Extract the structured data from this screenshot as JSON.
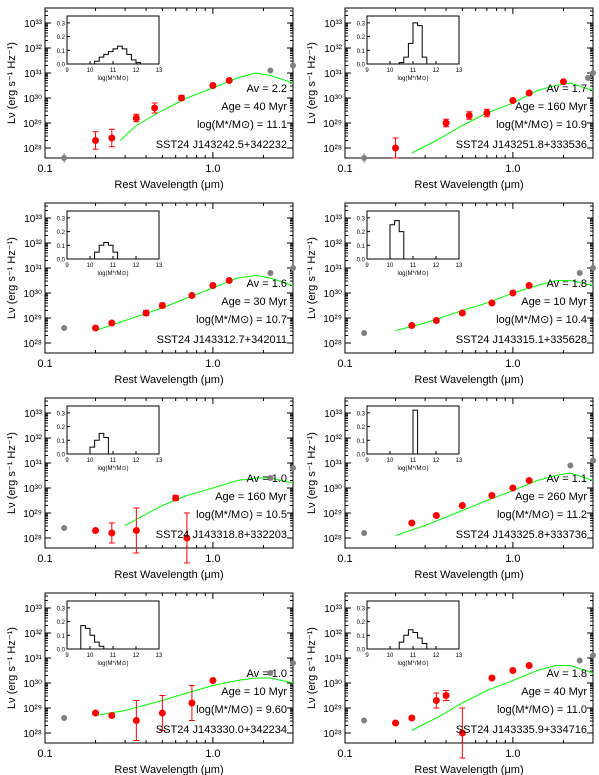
{
  "chart_data": {
    "type": "scatter",
    "xlabel": "Rest Wavelength (μm)",
    "ylabel": "Lν (erg s⁻¹ Hz⁻¹)",
    "x_scale": "log",
    "y_scale": "log",
    "xlim": [
      0.1,
      3.0
    ],
    "ylim_log10": [
      27.6,
      33.6
    ],
    "x_tick_labels": [
      "0.1",
      "1.0"
    ],
    "y_tick_labels": [
      "10²⁸",
      "10²⁹",
      "10³⁰",
      "10³¹",
      "10³²",
      "10³³"
    ],
    "colors": {
      "photometry": "#ff0000",
      "irac": "#808080",
      "model": "#00ff00",
      "frame": "#000000"
    },
    "inset": {
      "xlabel": "log(M*/M⊙)",
      "x_ticks": [
        "9",
        "10",
        "11",
        "12",
        "13"
      ],
      "y_ticks": [
        "0.0",
        "0.1",
        "0.2",
        "0.3"
      ],
      "xlim": [
        9,
        13
      ],
      "ylim": [
        0,
        0.35
      ]
    },
    "panels": [
      {
        "name": "SST24 J143242.5+342232",
        "av_text": "Av = 2.2",
        "age_text": "Age = 40 Myr",
        "mass_text": "log(M*/M⊙) = 11.1",
        "points_red": [
          [
            0.2,
            28.3,
            0.35
          ],
          [
            0.25,
            28.4,
            0.35
          ],
          [
            0.35,
            29.2,
            0.15
          ],
          [
            0.45,
            29.6,
            0.2
          ],
          [
            0.65,
            30.0,
            0.1
          ],
          [
            1.0,
            30.5,
            0.05
          ],
          [
            1.25,
            30.7,
            0.05
          ]
        ],
        "points_gray": [
          [
            0.13,
            27.6,
            0.2
          ],
          [
            2.2,
            31.1,
            0
          ],
          [
            3.0,
            31.3,
            0
          ]
        ],
        "model": [
          [
            0.28,
            28.3
          ],
          [
            0.35,
            28.9
          ],
          [
            0.5,
            29.5
          ],
          [
            0.7,
            30.0
          ],
          [
            1.0,
            30.4
          ],
          [
            1.4,
            30.8
          ],
          [
            1.8,
            31.0
          ],
          [
            2.2,
            30.9
          ],
          [
            3.0,
            30.6
          ]
        ],
        "hist": [
          [
            10.0,
            0
          ],
          [
            10.2,
            0.02
          ],
          [
            10.4,
            0.05
          ],
          [
            10.6,
            0.07
          ],
          [
            10.8,
            0.09
          ],
          [
            11.0,
            0.11
          ],
          [
            11.2,
            0.13
          ],
          [
            11.4,
            0.11
          ],
          [
            11.6,
            0.07
          ],
          [
            11.8,
            0.03
          ],
          [
            12.0,
            0.01
          ]
        ]
      },
      {
        "name": "SST24 J143251.8+333536",
        "av_text": "Av = 1.7",
        "age_text": "Age = 160 Myr",
        "mass_text": "log(M*/M⊙) = 10.9",
        "points_red": [
          [
            0.2,
            28.0,
            0.4
          ],
          [
            0.4,
            29.0,
            0.15
          ],
          [
            0.55,
            29.3,
            0.15
          ],
          [
            0.7,
            29.4,
            0.15
          ],
          [
            1.0,
            29.9,
            0.05
          ],
          [
            1.25,
            30.2,
            0.05
          ],
          [
            2.0,
            30.65,
            0.05
          ]
        ],
        "points_gray": [
          [
            0.13,
            27.6,
            0.2
          ],
          [
            2.8,
            30.8,
            0
          ],
          [
            3.0,
            31.0,
            0
          ]
        ],
        "model": [
          [
            0.25,
            27.8
          ],
          [
            0.35,
            28.3
          ],
          [
            0.5,
            28.9
          ],
          [
            0.7,
            29.4
          ],
          [
            1.0,
            29.8
          ],
          [
            1.4,
            30.3
          ],
          [
            1.8,
            30.5
          ],
          [
            2.2,
            30.6
          ],
          [
            3.0,
            30.3
          ]
        ],
        "hist": [
          [
            10.0,
            0
          ],
          [
            10.4,
            0.01
          ],
          [
            10.6,
            0.05
          ],
          [
            10.8,
            0.15
          ],
          [
            11.0,
            0.3
          ],
          [
            11.2,
            0.28
          ],
          [
            11.4,
            0.05
          ],
          [
            11.6,
            0.0
          ]
        ]
      },
      {
        "name": "SST24 J143312.7+342011",
        "av_text": "Av = 1.6",
        "age_text": "Age = 30 Myr",
        "mass_text": "log(M*/M⊙) = 10.7",
        "points_red": [
          [
            0.2,
            28.6,
            0.05
          ],
          [
            0.25,
            28.8,
            0.05
          ],
          [
            0.4,
            29.2,
            0.1
          ],
          [
            0.5,
            29.5,
            0.1
          ],
          [
            0.75,
            29.9,
            0.05
          ],
          [
            1.0,
            30.3,
            0.05
          ],
          [
            1.25,
            30.5,
            0.05
          ]
        ],
        "points_gray": [
          [
            0.13,
            28.6,
            0
          ],
          [
            2.2,
            30.8,
            0
          ],
          [
            3.0,
            31.0,
            0
          ]
        ],
        "model": [
          [
            0.2,
            28.5
          ],
          [
            0.3,
            28.9
          ],
          [
            0.5,
            29.4
          ],
          [
            0.7,
            29.8
          ],
          [
            1.0,
            30.2
          ],
          [
            1.4,
            30.6
          ],
          [
            1.8,
            30.7
          ],
          [
            2.2,
            30.6
          ],
          [
            3.0,
            30.3
          ]
        ],
        "hist": [
          [
            10.0,
            0
          ],
          [
            10.2,
            0.05
          ],
          [
            10.4,
            0.1
          ],
          [
            10.6,
            0.12
          ],
          [
            10.8,
            0.1
          ],
          [
            11.0,
            0.05
          ],
          [
            11.2,
            0.0
          ]
        ]
      },
      {
        "name": "SST24 J143315.1+335628",
        "av_text": "Av = 1.8",
        "age_text": "Age = 10 Myr",
        "mass_text": "log(M*/M⊙) = 10.4",
        "points_red": [
          [
            0.25,
            28.7,
            0.05
          ],
          [
            0.35,
            28.9,
            0.05
          ],
          [
            0.5,
            29.2,
            0.05
          ],
          [
            0.75,
            29.6,
            0.05
          ],
          [
            1.0,
            30.0,
            0.05
          ],
          [
            1.25,
            30.3,
            0.05
          ]
        ],
        "points_gray": [
          [
            0.13,
            28.4,
            0
          ],
          [
            2.5,
            30.8,
            0
          ],
          [
            3.0,
            31.0,
            0
          ]
        ],
        "model": [
          [
            0.2,
            28.5
          ],
          [
            0.3,
            28.8
          ],
          [
            0.5,
            29.3
          ],
          [
            0.7,
            29.6
          ],
          [
            1.0,
            30.0
          ],
          [
            1.4,
            30.3
          ],
          [
            1.8,
            30.5
          ],
          [
            2.2,
            30.5
          ],
          [
            3.0,
            30.3
          ]
        ],
        "hist": [
          [
            9.6,
            0
          ],
          [
            10.0,
            0.25
          ],
          [
            10.2,
            0.28
          ],
          [
            10.4,
            0.2
          ],
          [
            10.6,
            0.0
          ]
        ]
      },
      {
        "name": "SST24 J143318.8+332203",
        "av_text": "Av = 1.0",
        "age_text": "Age = 160 Myr",
        "mass_text": "log(M*/M⊙) = 10.5",
        "points_red": [
          [
            0.2,
            28.3,
            0.05
          ],
          [
            0.25,
            28.2,
            0.4
          ],
          [
            0.35,
            28.3,
            0.9
          ],
          [
            0.6,
            29.6,
            0.1
          ],
          [
            0.7,
            28.0,
            1.0
          ]
        ],
        "points_gray": [
          [
            0.13,
            28.4,
            0
          ],
          [
            2.2,
            30.4,
            0
          ],
          [
            3.0,
            30.8,
            0
          ]
        ],
        "model": [
          [
            0.3,
            28.5
          ],
          [
            0.5,
            29.3
          ],
          [
            0.7,
            29.7
          ],
          [
            1.0,
            30.0
          ],
          [
            1.4,
            30.3
          ],
          [
            1.8,
            30.4
          ],
          [
            2.2,
            30.4
          ],
          [
            3.0,
            30.2
          ]
        ],
        "hist": [
          [
            9.6,
            0
          ],
          [
            10.0,
            0.05
          ],
          [
            10.2,
            0.1
          ],
          [
            10.4,
            0.15
          ],
          [
            10.6,
            0.12
          ],
          [
            10.8,
            0.0
          ]
        ]
      },
      {
        "name": "SST24 J143325.8+333736",
        "av_text": "Av = 1.1",
        "age_text": "Age = 260 Myr",
        "mass_text": "log(M*/M⊙) = 11.2",
        "points_red": [
          [
            0.25,
            28.6,
            0.05
          ],
          [
            0.35,
            28.9,
            0.05
          ],
          [
            0.5,
            29.3,
            0.05
          ],
          [
            0.75,
            29.7,
            0.05
          ],
          [
            1.0,
            30.0,
            0.05
          ],
          [
            1.25,
            30.3,
            0.05
          ]
        ],
        "points_gray": [
          [
            0.13,
            28.2,
            0
          ],
          [
            2.2,
            30.9,
            0
          ],
          [
            3.0,
            31.1,
            0
          ]
        ],
        "model": [
          [
            0.2,
            28.1
          ],
          [
            0.3,
            28.5
          ],
          [
            0.5,
            29.1
          ],
          [
            0.7,
            29.5
          ],
          [
            1.0,
            29.9
          ],
          [
            1.4,
            30.3
          ],
          [
            1.8,
            30.5
          ],
          [
            2.2,
            30.6
          ],
          [
            3.0,
            30.3
          ]
        ],
        "hist": [
          [
            10.8,
            0
          ],
          [
            11.0,
            0.32
          ],
          [
            11.1,
            0.32
          ],
          [
            11.2,
            0.0
          ]
        ]
      },
      {
        "name": "SST24 J143330.0+342234",
        "av_text": "Av = 1.0",
        "age_text": "Age = 10 Myr",
        "mass_text": "log(M*/M⊙) = 9.60",
        "points_red": [
          [
            0.2,
            28.8,
            0.05
          ],
          [
            0.25,
            28.7,
            0.05
          ],
          [
            0.35,
            28.5,
            0.8
          ],
          [
            0.5,
            28.8,
            0.7
          ],
          [
            0.75,
            29.2,
            0.7
          ],
          [
            1.0,
            30.1,
            0.05
          ]
        ],
        "points_gray": [
          [
            0.13,
            28.6,
            0
          ],
          [
            2.2,
            30.4,
            0
          ],
          [
            3.0,
            30.8,
            0
          ]
        ],
        "model": [
          [
            0.2,
            28.7
          ],
          [
            0.3,
            28.9
          ],
          [
            0.5,
            29.3
          ],
          [
            0.7,
            29.6
          ],
          [
            1.0,
            29.9
          ],
          [
            1.4,
            30.1
          ],
          [
            1.8,
            30.2
          ],
          [
            2.2,
            30.2
          ],
          [
            3.0,
            30.0
          ]
        ],
        "hist": [
          [
            9.4,
            0
          ],
          [
            9.6,
            0.17
          ],
          [
            9.8,
            0.15
          ],
          [
            10.0,
            0.1
          ],
          [
            10.2,
            0.05
          ],
          [
            10.4,
            0.02
          ],
          [
            10.6,
            0.0
          ]
        ]
      },
      {
        "name": "SST24 J143335.9+334716",
        "av_text": "Av = 1.8",
        "age_text": "Age = 40 Myr",
        "mass_text": "log(M*/M⊙) = 11.0",
        "points_red": [
          [
            0.2,
            28.4,
            0.05
          ],
          [
            0.25,
            28.6,
            0.05
          ],
          [
            0.35,
            29.3,
            0.3
          ],
          [
            0.4,
            29.5,
            0.2
          ],
          [
            0.5,
            28.0,
            1.0
          ],
          [
            0.75,
            30.2,
            0.05
          ],
          [
            1.0,
            30.5,
            0.05
          ],
          [
            1.25,
            30.7,
            0.05
          ]
        ],
        "points_gray": [
          [
            0.13,
            28.5,
            0
          ],
          [
            2.5,
            30.9,
            0
          ],
          [
            3.0,
            31.1,
            0
          ]
        ],
        "model": [
          [
            0.25,
            28.1
          ],
          [
            0.35,
            28.6
          ],
          [
            0.5,
            29.2
          ],
          [
            0.7,
            29.7
          ],
          [
            1.0,
            30.1
          ],
          [
            1.4,
            30.5
          ],
          [
            1.8,
            30.7
          ],
          [
            2.2,
            30.7
          ],
          [
            3.0,
            30.4
          ]
        ],
        "hist": [
          [
            10.2,
            0
          ],
          [
            10.4,
            0.05
          ],
          [
            10.6,
            0.1
          ],
          [
            10.8,
            0.14
          ],
          [
            11.0,
            0.12
          ],
          [
            11.2,
            0.08
          ],
          [
            11.4,
            0.04
          ],
          [
            11.6,
            0.0
          ]
        ]
      }
    ]
  }
}
